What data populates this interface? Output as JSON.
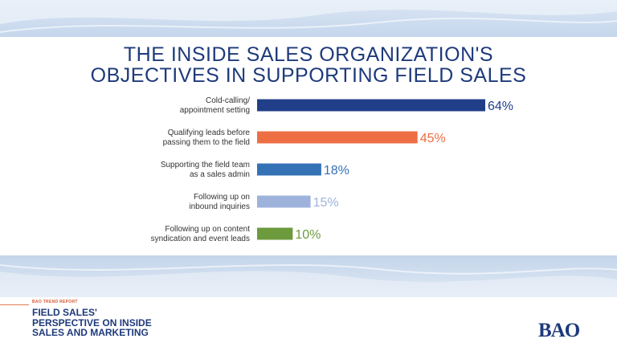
{
  "chart_data": {
    "type": "bar",
    "orientation": "horizontal",
    "title_lines": [
      "THE INSIDE SALES ORGANIZATION'S",
      "OBJECTIVES IN SUPPORTING FIELD SALES"
    ],
    "categories": [
      [
        "Cold-calling/",
        "appointment setting"
      ],
      [
        "Qualifying leads before",
        "passing them to the field"
      ],
      [
        "Supporting the field team",
        "as a sales admin"
      ],
      [
        "Following up on",
        "inbound inquiries"
      ],
      [
        "Following up on content",
        "syndication and event leads"
      ]
    ],
    "values": [
      64,
      45,
      18,
      15,
      10
    ],
    "value_labels": [
      "64%",
      "45%",
      "18%",
      "15%",
      "10%"
    ],
    "colors": [
      "#213f88",
      "#ed6e43",
      "#3472b5",
      "#9db3dc",
      "#6c9a3d"
    ],
    "unit": "%",
    "xlim": [
      0,
      64
    ],
    "grid": false,
    "legend": "none"
  },
  "footer": {
    "report_label": "BAO TREND REPORT",
    "report_title_lines": [
      "Field Sales'",
      "Perspective on Inside",
      "Sales and Marketing"
    ],
    "logo_text": "BAO"
  }
}
